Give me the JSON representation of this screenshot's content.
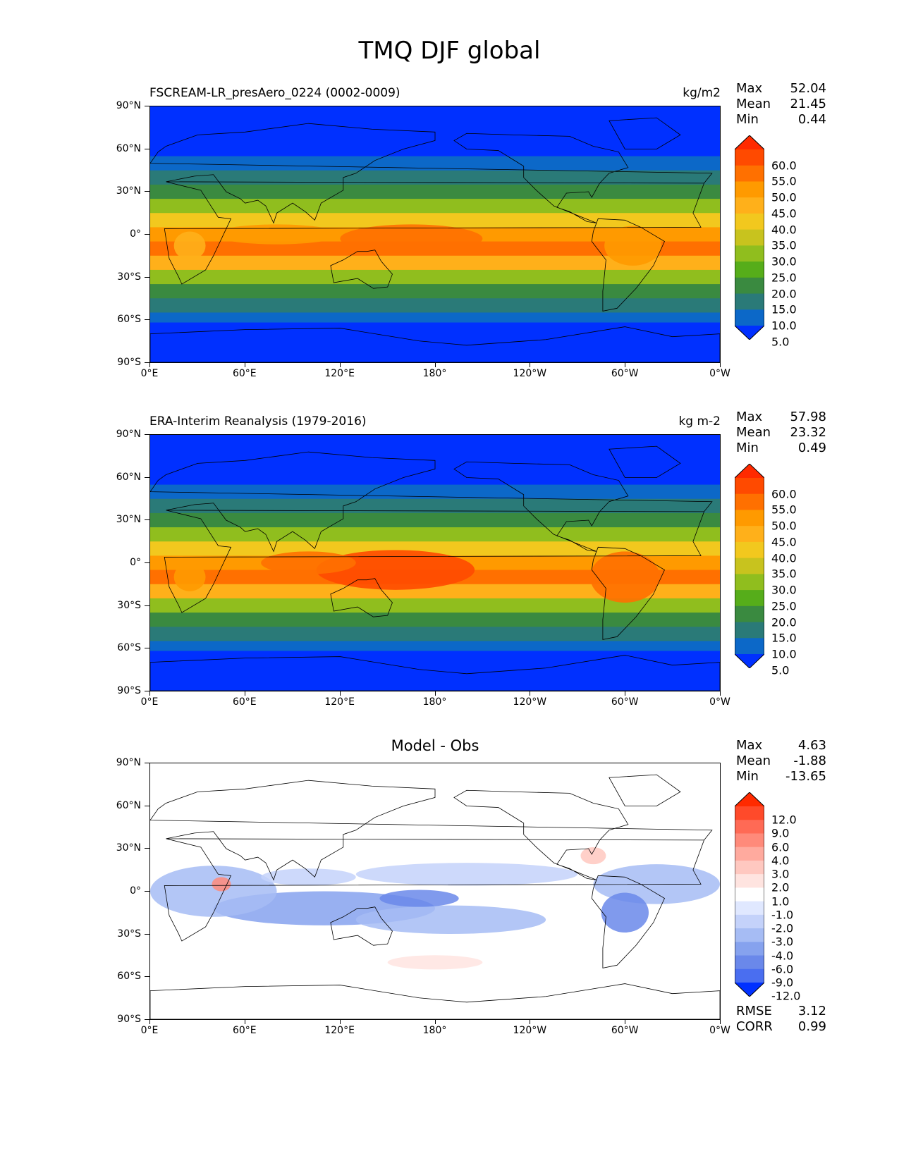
{
  "figure": {
    "title": "TMQ DJF global"
  },
  "axes": {
    "lat_labels": [
      "90°N",
      "60°N",
      "30°N",
      "0°",
      "30°S",
      "60°S",
      "90°S"
    ],
    "lon_labels": [
      "0°E",
      "60°E",
      "120°E",
      "180°",
      "120°W",
      "60°W",
      "0°W"
    ]
  },
  "panels": [
    {
      "left_title": "FSCREAM-LR_presAero_0224 (0002-0009)",
      "right_title": "kg/m2",
      "center_title": "",
      "stats": [
        {
          "label": "Max",
          "value": "52.04"
        },
        {
          "label": "Mean",
          "value": "21.45"
        },
        {
          "label": "Min",
          "value": "0.44"
        }
      ],
      "colorbar_labels": [
        "60.0",
        "55.0",
        "50.0",
        "45.0",
        "40.0",
        "35.0",
        "30.0",
        "25.0",
        "20.0",
        "15.0",
        "10.0",
        "5.0"
      ],
      "colorbar_colors": [
        "#ff2a00",
        "#ff4a00",
        "#ff7000",
        "#ff9a00",
        "#ffb01a",
        "#f2c81e",
        "#c8c31e",
        "#90be1e",
        "#56ad1a",
        "#3a8a40",
        "#2a7a78",
        "#0c68c8",
        "#0030ff"
      ],
      "metrics": []
    },
    {
      "left_title": "ERA-Interim Reanalysis (1979-2016)",
      "right_title": "kg m-2",
      "center_title": "",
      "stats": [
        {
          "label": "Max",
          "value": "57.98"
        },
        {
          "label": "Mean",
          "value": "23.32"
        },
        {
          "label": "Min",
          "value": "0.49"
        }
      ],
      "colorbar_labels": [
        "60.0",
        "55.0",
        "50.0",
        "45.0",
        "40.0",
        "35.0",
        "30.0",
        "25.0",
        "20.0",
        "15.0",
        "10.0",
        "5.0"
      ],
      "colorbar_colors": [
        "#ff2a00",
        "#ff4a00",
        "#ff7000",
        "#ff9a00",
        "#ffb01a",
        "#f2c81e",
        "#c8c31e",
        "#90be1e",
        "#56ad1a",
        "#3a8a40",
        "#2a7a78",
        "#0c68c8",
        "#0030ff"
      ],
      "metrics": []
    },
    {
      "left_title": "",
      "right_title": "",
      "center_title": "Model - Obs",
      "stats": [
        {
          "label": "Max",
          "value": "4.63"
        },
        {
          "label": "Mean",
          "value": "-1.88"
        },
        {
          "label": "Min",
          "value": "-13.65"
        }
      ],
      "colorbar_labels": [
        "12.0",
        "9.0",
        "6.0",
        "4.0",
        "3.0",
        "2.0",
        "1.0",
        "-1.0",
        "-2.0",
        "-3.0",
        "-4.0",
        "-6.0",
        "-9.0",
        "-12.0"
      ],
      "colorbar_colors": [
        "#ff2a00",
        "#ff4a2a",
        "#ff6a55",
        "#ff8a7a",
        "#ffaa9e",
        "#ffc8c0",
        "#ffe4e0",
        "#ffffff",
        "#e0e8ff",
        "#c4d2fa",
        "#a6bcf4",
        "#86a2ee",
        "#6a88ea",
        "#4a6ef0",
        "#0030ff"
      ],
      "metrics": [
        {
          "label": "RMSE",
          "value": "3.12"
        },
        {
          "label": "CORR",
          "value": "0.99"
        }
      ]
    }
  ]
}
